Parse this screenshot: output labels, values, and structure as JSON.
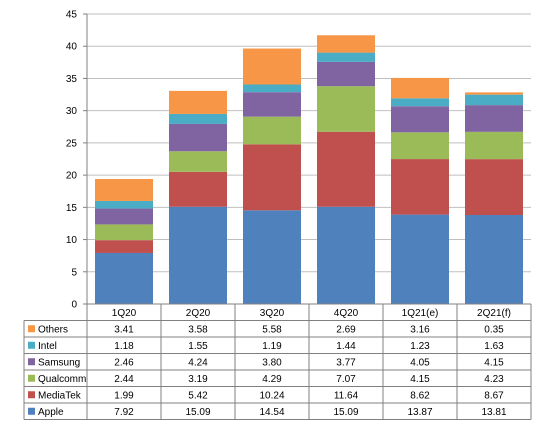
{
  "chart_data": {
    "type": "bar",
    "stacked": true,
    "categories": [
      "1Q20",
      "2Q20",
      "3Q20",
      "4Q20",
      "1Q21(e)",
      "2Q21(f)"
    ],
    "series": [
      {
        "name": "Apple",
        "color": "#4F81BD",
        "values": [
          7.92,
          15.09,
          14.54,
          15.09,
          13.87,
          13.81
        ],
        "labels": [
          "7.92",
          "15.09",
          "14.54",
          "15.09",
          "13.87",
          "13.81"
        ]
      },
      {
        "name": "MediaTek",
        "color": "#C0504D",
        "values": [
          1.99,
          5.42,
          10.24,
          11.64,
          8.62,
          8.67
        ],
        "labels": [
          "1.99",
          "5.42",
          "10.24",
          "11.64",
          "8.62",
          "8.67"
        ]
      },
      {
        "name": "Qualcomm",
        "color": "#9BBB59",
        "values": [
          2.44,
          3.19,
          4.29,
          7.07,
          4.15,
          4.23
        ],
        "labels": [
          "2.44",
          "3.19",
          "4.29",
          "7.07",
          "4.15",
          "4.23"
        ]
      },
      {
        "name": "Samsung",
        "color": "#8064A2",
        "values": [
          2.46,
          4.24,
          3.8,
          3.77,
          4.05,
          4.15
        ],
        "labels": [
          "2.46",
          "4.24",
          "3.80",
          "3.77",
          "4.05",
          "4.15"
        ]
      },
      {
        "name": "Intel",
        "color": "#4BACC6",
        "values": [
          1.18,
          1.55,
          1.19,
          1.44,
          1.23,
          1.63
        ],
        "labels": [
          "1.18",
          "1.55",
          "1.19",
          "1.44",
          "1.23",
          "1.63"
        ]
      },
      {
        "name": "Others",
        "color": "#F79646",
        "values": [
          3.41,
          3.58,
          5.58,
          2.69,
          3.16,
          0.35
        ],
        "labels": [
          "3.41",
          "3.58",
          "5.58",
          "2.69",
          "3.16",
          "0.35"
        ]
      }
    ],
    "y_ticks": [
      "0",
      "5",
      "10",
      "15",
      "20",
      "25",
      "30",
      "35",
      "40",
      "45"
    ],
    "ylim": [
      0,
      45
    ],
    "grid": true,
    "title": "",
    "xlabel": "",
    "ylabel": "",
    "legend": "data-table"
  }
}
